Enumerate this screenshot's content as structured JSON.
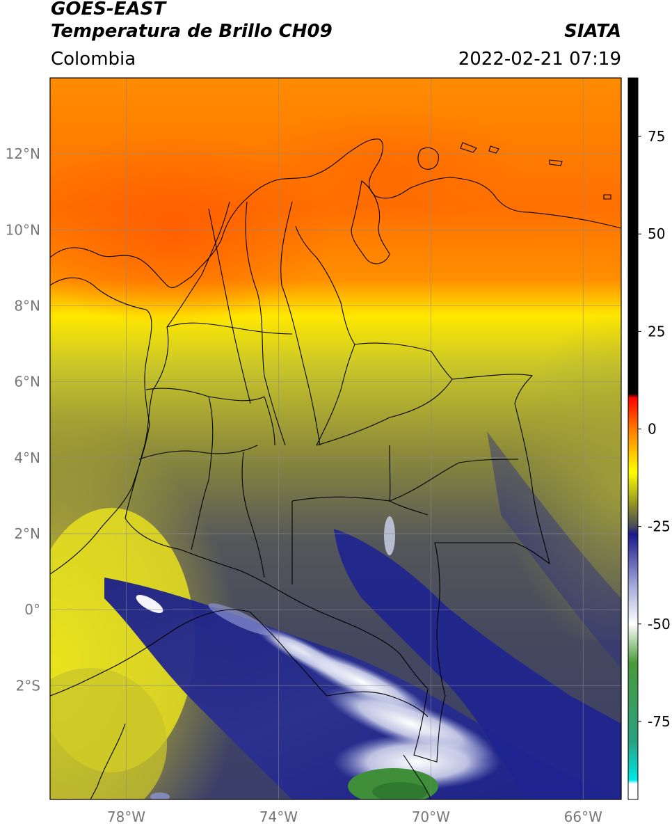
{
  "header": {
    "satellite": "GOES-EAST",
    "product": "Temperatura de Brillo CH09",
    "organization": "SIATA",
    "region": "Colombia",
    "datetime": "2022-02-21 07:19"
  },
  "map": {
    "extent": {
      "lon_min": -80.0,
      "lon_max": -65.0,
      "lat_min": -5.0,
      "lat_max": 14.0
    },
    "lat_ticks": [
      {
        "value": 12,
        "label": "12°N"
      },
      {
        "value": 10,
        "label": "10°N"
      },
      {
        "value": 8,
        "label": "8°N"
      },
      {
        "value": 6,
        "label": "6°N"
      },
      {
        "value": 4,
        "label": "4°N"
      },
      {
        "value": 2,
        "label": "2°N"
      },
      {
        "value": 0,
        "label": "0°"
      },
      {
        "value": -2,
        "label": "2°S"
      }
    ],
    "lon_ticks": [
      {
        "value": -78,
        "label": "78°W"
      },
      {
        "value": -74,
        "label": "74°W"
      },
      {
        "value": -70,
        "label": "70°W"
      },
      {
        "value": -66,
        "label": "66°W"
      }
    ],
    "gridlines": true
  },
  "colorbar": {
    "range": [
      -95,
      90
    ],
    "ticks": [
      {
        "value": 75,
        "label": "75"
      },
      {
        "value": 50,
        "label": "50"
      },
      {
        "value": 25,
        "label": "25"
      },
      {
        "value": 0,
        "label": "0"
      },
      {
        "value": -25,
        "label": "-25"
      },
      {
        "value": -50,
        "label": "-50"
      },
      {
        "value": -75,
        "label": "-75"
      }
    ],
    "color_stops": [
      {
        "value": 90,
        "color": "#000000"
      },
      {
        "value": 9,
        "color": "#000000"
      },
      {
        "value": 8,
        "color": "#ff0000"
      },
      {
        "value": 0,
        "color": "#ff7a00"
      },
      {
        "value": -11,
        "color": "#ffff00"
      },
      {
        "value": -20,
        "color": "#8a8a2a"
      },
      {
        "value": -25,
        "color": "#474a5a"
      },
      {
        "value": -27,
        "color": "#1a1a8a"
      },
      {
        "value": -40,
        "color": "#a0a8d8"
      },
      {
        "value": -50,
        "color": "#ffffff"
      },
      {
        "value": -60,
        "color": "#4a9a3a"
      },
      {
        "value": -80,
        "color": "#2aa080"
      },
      {
        "value": -90,
        "color": "#00e8e8"
      },
      {
        "value": -91,
        "color": "#ffffff"
      },
      {
        "value": -95,
        "color": "#ffffff"
      }
    ]
  }
}
